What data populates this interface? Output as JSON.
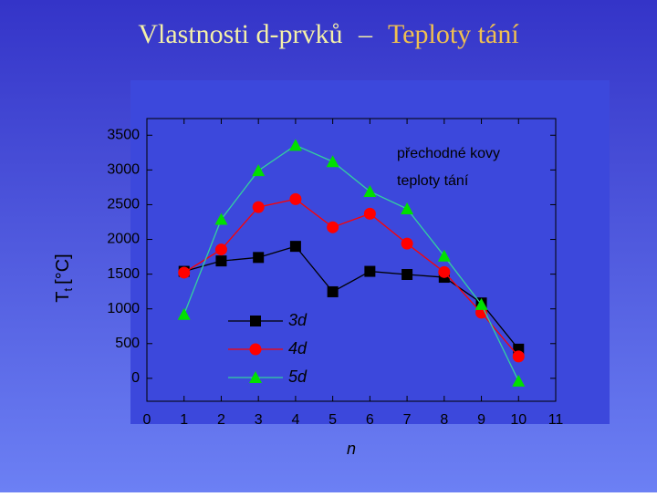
{
  "title": {
    "part1": "Vlastnosti d-prvků",
    "dash": "–",
    "part2": "Teploty tání"
  },
  "chart_data": {
    "type": "line",
    "y_label": {
      "main": "T",
      "sub": "t",
      "unit": "[°C]"
    },
    "x_label": "n",
    "annotations": [
      "přechodné kovy",
      "teploty tání"
    ],
    "x": [
      1,
      2,
      3,
      4,
      5,
      6,
      7,
      8,
      9,
      10
    ],
    "series": [
      {
        "name": "3d",
        "color": "#000000",
        "marker": "square",
        "values": [
          1540,
          1690,
          1740,
          1900,
          1246,
          1540,
          1495,
          1455,
          1085,
          420
        ]
      },
      {
        "name": "4d",
        "color": "#ff0000",
        "marker": "circle",
        "values": [
          1522,
          1855,
          2465,
          2580,
          2175,
          2370,
          1940,
          1530,
          945,
          315
        ]
      },
      {
        "name": "5d",
        "color": "#00e000",
        "line_color": "#33d0a0",
        "marker": "triangle",
        "values": [
          920,
          2290,
          2990,
          3355,
          3120,
          2690,
          2440,
          1760,
          1064,
          -39
        ]
      }
    ],
    "xlim": [
      0,
      11
    ],
    "xticks": [
      0,
      1,
      2,
      3,
      4,
      5,
      6,
      7,
      8,
      9,
      10,
      11
    ],
    "ylim": [
      -330,
      3740
    ],
    "yticks": [
      0,
      500,
      1000,
      1500,
      2000,
      2500,
      3000,
      3500
    ]
  }
}
